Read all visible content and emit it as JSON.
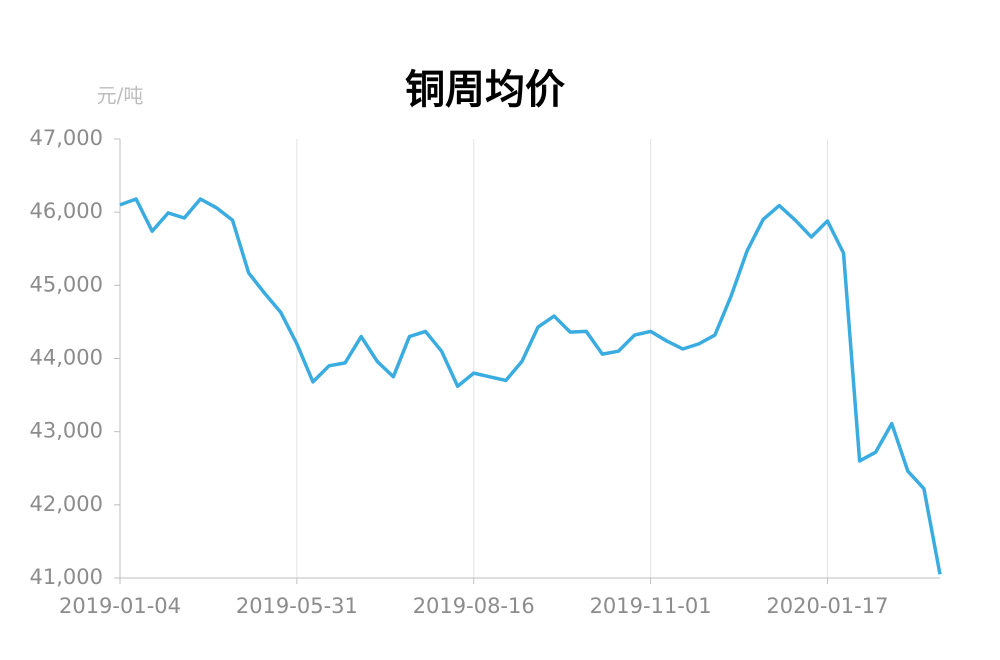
{
  "chart_data": {
    "type": "line",
    "title": "铜周均价",
    "y_label": "元/吨",
    "categories": [
      "2019-01-04",
      null,
      null,
      null,
      null,
      null,
      null,
      null,
      null,
      null,
      null,
      "2019-05-31",
      null,
      null,
      null,
      null,
      null,
      null,
      null,
      null,
      null,
      null,
      "2019-08-16",
      null,
      null,
      null,
      null,
      null,
      null,
      null,
      null,
      null,
      null,
      "2019-11-01",
      null,
      null,
      null,
      null,
      null,
      null,
      null,
      null,
      null,
      null,
      "2020-01-17",
      null,
      null,
      null,
      null,
      null,
      null,
      null
    ],
    "series": [
      {
        "name": "铜周均价",
        "color": "#3aace0",
        "values": [
          46100,
          46180,
          45740,
          45990,
          45920,
          46180,
          46060,
          45890,
          45170,
          44890,
          44630,
          44200,
          43680,
          43900,
          43940,
          44300,
          43960,
          43750,
          44300,
          44370,
          44100,
          43620,
          43800,
          43750,
          43700,
          43960,
          44430,
          44580,
          44360,
          44370,
          44060,
          44100,
          44320,
          44370,
          44240,
          44130,
          44200,
          44320,
          44850,
          45470,
          45900,
          46090,
          45890,
          45660,
          45880,
          45440,
          42600,
          42720,
          43110,
          42460,
          42220,
          41050
        ]
      }
    ],
    "ylim": [
      41000,
      47000
    ],
    "yticks": [
      {
        "value": 41000,
        "label": "41,000"
      },
      {
        "value": 42000,
        "label": "42,000"
      },
      {
        "value": 43000,
        "label": "43,000"
      },
      {
        "value": 44000,
        "label": "44,000"
      },
      {
        "value": 45000,
        "label": "45,000"
      },
      {
        "value": 46000,
        "label": "46,000"
      },
      {
        "value": 47000,
        "label": "47,000"
      }
    ],
    "grid": "x"
  }
}
